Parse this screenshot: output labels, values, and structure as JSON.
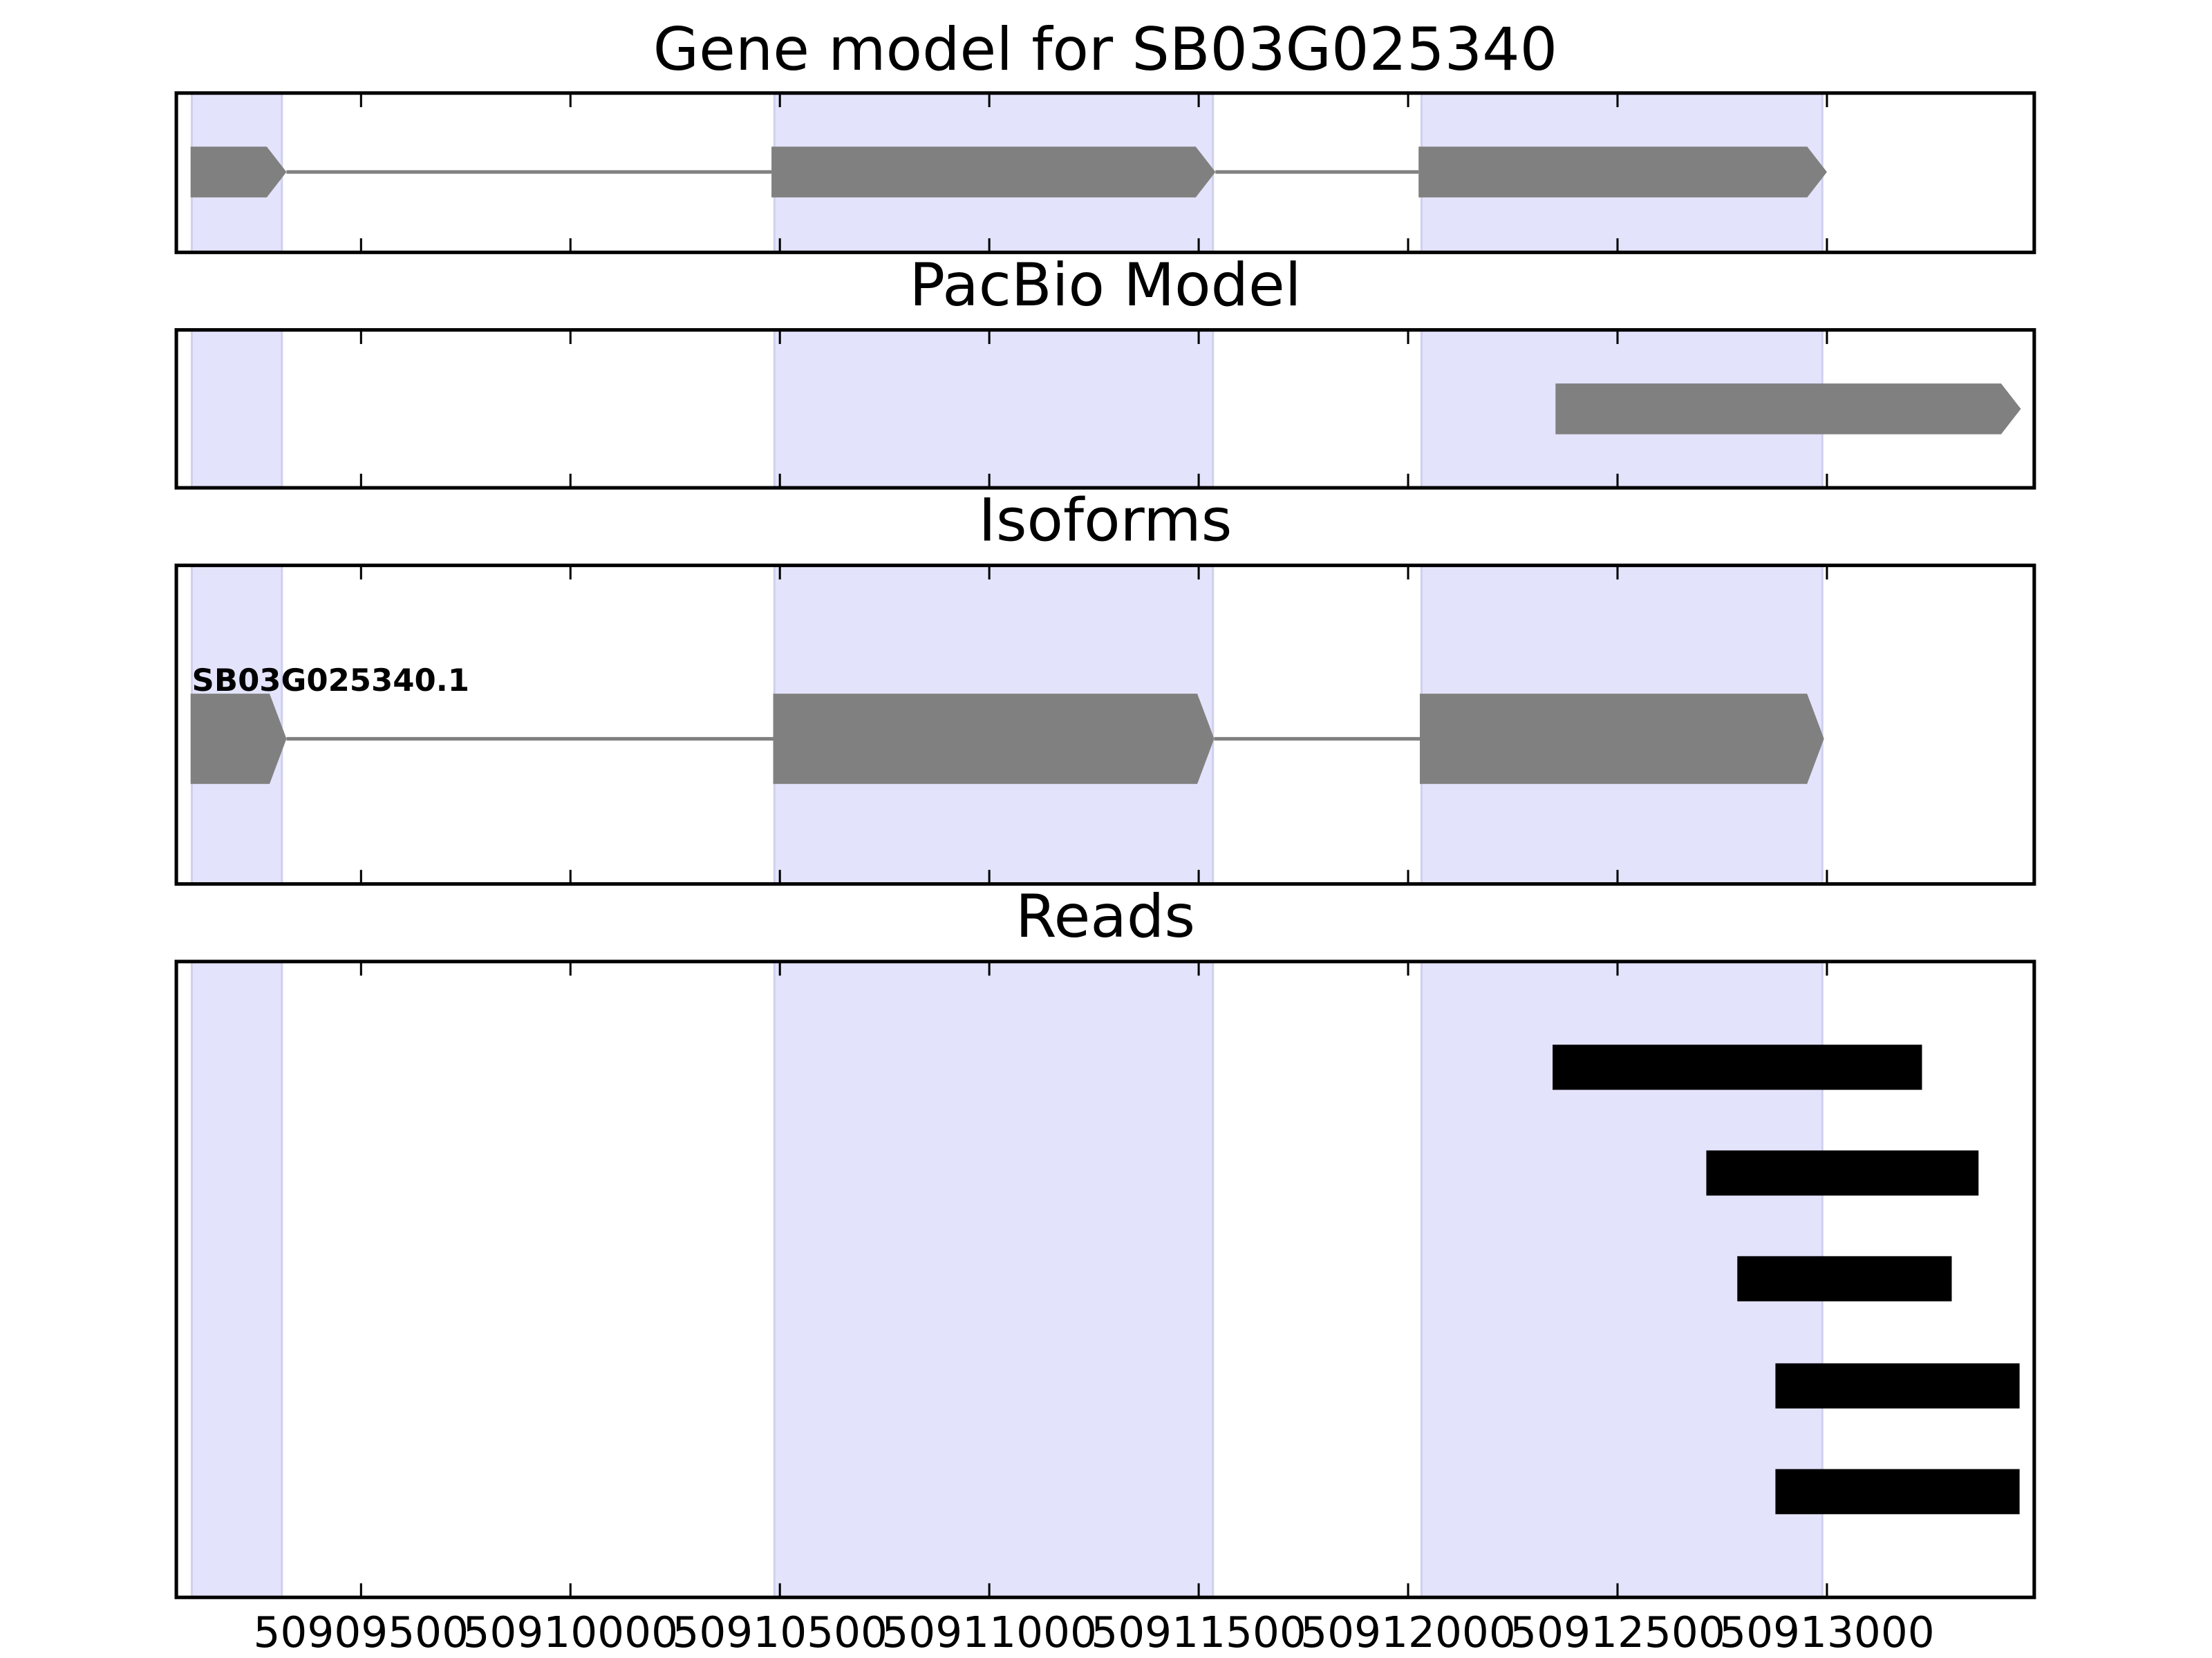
{
  "chart_data": [
    {
      "type": "gene",
      "title": "Gene model for SB03G025340",
      "xlim": [
        50909059,
        50913495
      ],
      "xticks": [
        50909500,
        50910000,
        50910500,
        50911000,
        50911500,
        50912000,
        50912500,
        50913000
      ],
      "highlights": [
        [
          50909096,
          50909311
        ],
        [
          50910487,
          50911534
        ],
        [
          50912032,
          50912989
        ]
      ],
      "highlight_color": "#e3e3fc",
      "color": "#808080",
      "exons": [
        [
          50909093,
          50909322
        ],
        [
          50910480,
          50911540
        ],
        [
          50912025,
          50913000
        ]
      ]
    },
    {
      "type": "gene",
      "title": "PacBio Model",
      "xlim": [
        50909059,
        50913495
      ],
      "xticks": [
        50909500,
        50910000,
        50910500,
        50911000,
        50911500,
        50912000,
        50912500,
        50913000
      ],
      "highlights": [
        [
          50909096,
          50909311
        ],
        [
          50910487,
          50911534
        ],
        [
          50912032,
          50912989
        ]
      ],
      "highlight_color": "#e3e3fc",
      "color": "#808080",
      "exons": [
        [
          50912352,
          50913463
        ]
      ]
    },
    {
      "type": "gene",
      "title": "Isoforms",
      "name": "SB03G025340.1",
      "xlim": [
        50909059,
        50913495
      ],
      "xticks": [
        50909500,
        50910000,
        50910500,
        50911000,
        50911500,
        50912000,
        50912500,
        50913000
      ],
      "highlights": [
        [
          50909096,
          50909311
        ],
        [
          50910487,
          50911534
        ],
        [
          50912032,
          50912989
        ]
      ],
      "highlight_color": "#e3e3fc",
      "color": "#808080",
      "exons": [
        [
          50909093,
          50909322
        ],
        [
          50910484,
          50911537
        ],
        [
          50912028,
          50912993
        ]
      ]
    },
    {
      "type": "reads",
      "title": "Reads",
      "xlim": [
        50909059,
        50913495
      ],
      "xticks": [
        50909500,
        50910000,
        50910500,
        50911000,
        50911500,
        50912000,
        50912500,
        50913000
      ],
      "highlights": [
        [
          50909096,
          50909311
        ],
        [
          50910487,
          50911534
        ],
        [
          50912032,
          50912989
        ]
      ],
      "highlight_color": "#e3e3fc",
      "color": "#000000",
      "reads": [
        [
          50912345,
          50913227
        ],
        [
          50912712,
          50913362
        ],
        [
          50912786,
          50913298
        ],
        [
          50912877,
          50913460
        ],
        [
          50912877,
          50913460
        ]
      ]
    }
  ]
}
